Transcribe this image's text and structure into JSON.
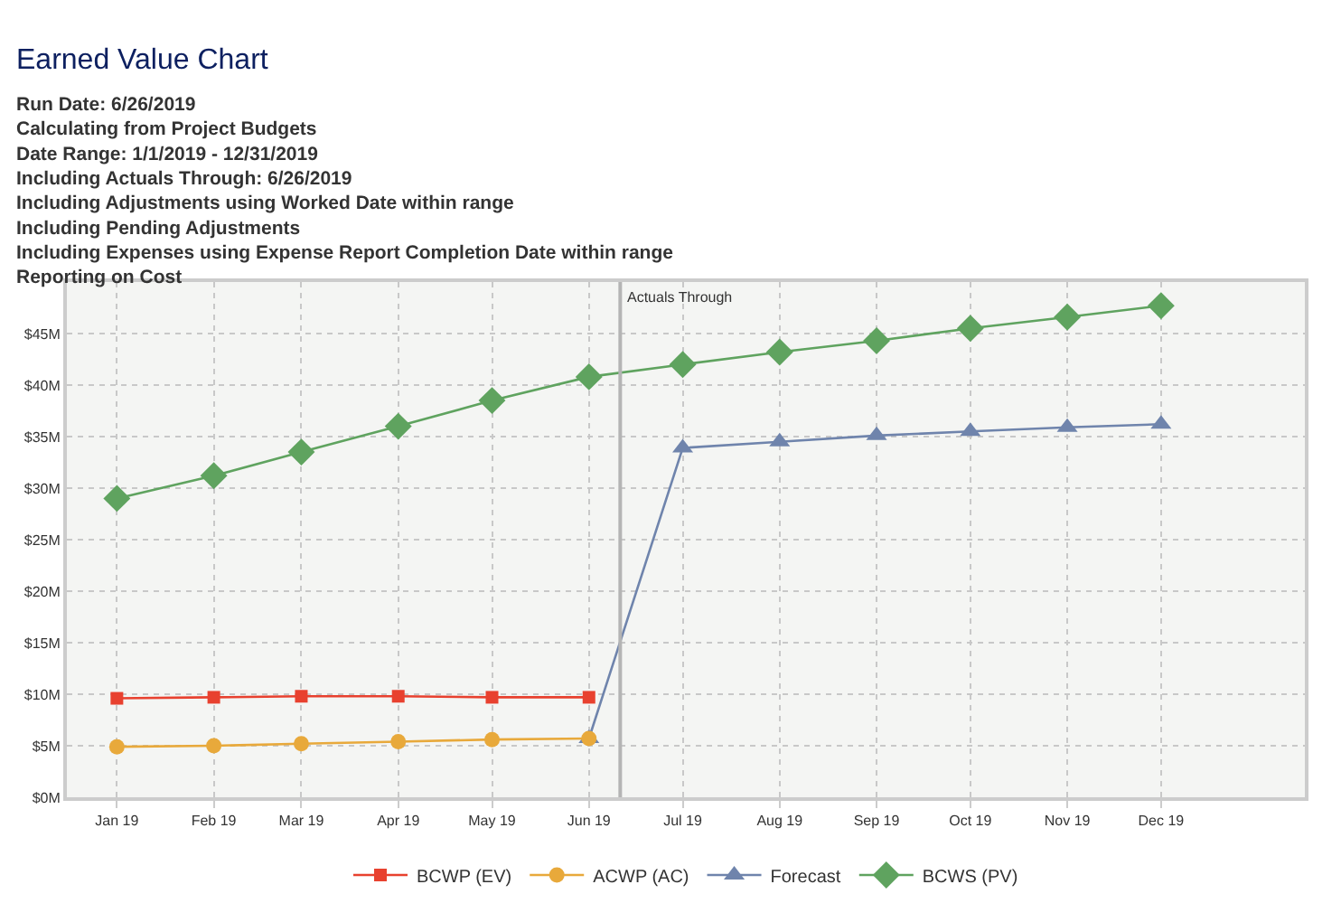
{
  "chart_data": {
    "type": "line",
    "title": "Earned Value Chart",
    "subtitle": "Run Date: 6/26/2019\nCalculating from Project Budgets\nDate Range: 1/1/2019 - 12/31/2019\nIncluding Actuals Through: 6/26/2019\nIncluding Adjustments using Worked Date within range\nIncluding Pending Adjustments\nIncluding Expenses using Expense Report Completion Date within range\nReporting on Cost",
    "x": [
      "2019-01",
      "2019-02",
      "2019-03",
      "2019-04",
      "2019-05",
      "2019-06",
      "2019-07",
      "2019-08",
      "2019-09",
      "2019-10",
      "2019-11",
      "2019-12"
    ],
    "series": [
      {
        "name": "BCWP (EV)",
        "color": "#e8412f",
        "marker": "square",
        "values": [
          9.6,
          9.7,
          9.8,
          9.8,
          9.7,
          9.7,
          null,
          null,
          null,
          null,
          null,
          null
        ]
      },
      {
        "name": "ACWP (AC)",
        "color": "#e8a93b",
        "marker": "circle",
        "values": [
          4.9,
          5.0,
          5.2,
          5.4,
          5.6,
          5.7,
          null,
          null,
          null,
          null,
          null,
          null
        ]
      },
      {
        "name": "Forecast",
        "color": "#6f84ac",
        "marker": "triangle",
        "values": [
          null,
          null,
          null,
          null,
          null,
          5.7,
          33.9,
          34.5,
          35.1,
          35.5,
          35.9,
          36.2
        ]
      },
      {
        "name": "BCWS (PV)",
        "color": "#5fa35f",
        "marker": "diamond",
        "values": [
          29.0,
          31.2,
          33.5,
          36.0,
          38.5,
          40.8,
          42.0,
          43.2,
          44.3,
          45.5,
          46.6,
          47.7
        ]
      }
    ],
    "xlim": [
      "2018-12-16",
      "2020-01-16"
    ],
    "xticks": [
      {
        "value": "2019-01",
        "label": "Jan 19"
      },
      {
        "value": "2019-02",
        "label": "Feb 19"
      },
      {
        "value": "2019-03",
        "label": "Mar 19"
      },
      {
        "value": "2019-04",
        "label": "Apr 19"
      },
      {
        "value": "2019-05",
        "label": "May 19"
      },
      {
        "value": "2019-06",
        "label": "Jun 19"
      },
      {
        "value": "2019-07",
        "label": "Jul 19"
      },
      {
        "value": "2019-08",
        "label": "Aug 19"
      },
      {
        "value": "2019-09",
        "label": "Sep 19"
      },
      {
        "value": "2019-10",
        "label": "Oct 19"
      },
      {
        "value": "2019-11",
        "label": "Nov 19"
      },
      {
        "value": "2019-12",
        "label": "Dec 19"
      }
    ],
    "ylim": [
      0,
      50
    ],
    "yticks": [
      {
        "value": 0,
        "label": "$0M"
      },
      {
        "value": 5,
        "label": "$5M"
      },
      {
        "value": 10,
        "label": "$10M"
      },
      {
        "value": 15,
        "label": "$15M"
      },
      {
        "value": 20,
        "label": "$20M"
      },
      {
        "value": 25,
        "label": "$25M"
      },
      {
        "value": 30,
        "label": "$30M"
      },
      {
        "value": 35,
        "label": "$35M"
      },
      {
        "value": 40,
        "label": "$40M"
      },
      {
        "value": 45,
        "label": "$45M"
      }
    ],
    "ref_lines": [
      {
        "axis": "x",
        "value": "2019-06-11",
        "label": "Actuals Through",
        "color": "#b4b4b4"
      }
    ],
    "grid": true,
    "legend": "bottom",
    "line_style": "solid"
  }
}
